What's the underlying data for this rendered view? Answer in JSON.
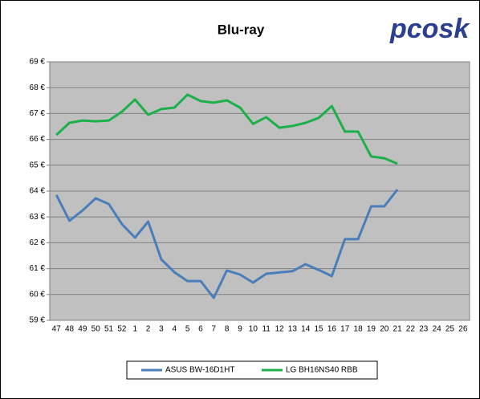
{
  "logo": "pcosk",
  "chart_data": {
    "type": "line",
    "title": "Blu-ray",
    "categories": [
      "47",
      "48",
      "49",
      "50",
      "51",
      "52",
      "1",
      "2",
      "3",
      "4",
      "5",
      "6",
      "7",
      "8",
      "9",
      "10",
      "11",
      "12",
      "13",
      "14",
      "15",
      "16",
      "17",
      "18",
      "19",
      "20",
      "21",
      "22",
      "23",
      "24",
      "25",
      "26"
    ],
    "series": [
      {
        "name": "ASUS BW-16D1HT",
        "color": "#4a7ebb",
        "values": [
          63.85,
          62.85,
          63.25,
          63.72,
          63.5,
          62.72,
          62.2,
          62.82,
          61.36,
          60.86,
          60.52,
          60.52,
          59.87,
          60.93,
          60.77,
          60.46,
          60.8,
          60.85,
          60.9,
          61.17,
          60.95,
          60.71,
          62.14,
          62.14,
          63.41,
          63.41,
          64.06,
          null,
          null,
          null,
          null,
          null
        ]
      },
      {
        "name": "LG BH16NS40 RBB",
        "color": "#1db04a",
        "values": [
          66.17,
          66.64,
          66.73,
          66.7,
          66.73,
          67.07,
          67.54,
          66.95,
          67.17,
          67.23,
          67.73,
          67.48,
          67.42,
          67.51,
          67.23,
          66.6,
          66.86,
          66.45,
          66.52,
          66.64,
          66.83,
          67.29,
          66.3,
          66.3,
          65.34,
          65.27,
          65.06,
          null,
          null,
          null,
          null,
          null
        ]
      }
    ],
    "ylim": [
      59,
      69
    ],
    "yticks": [
      {
        "value": 59,
        "label": "59 €"
      },
      {
        "value": 60,
        "label": "60 €"
      },
      {
        "value": 61,
        "label": "61 €"
      },
      {
        "value": 62,
        "label": "62 €"
      },
      {
        "value": 63,
        "label": "63 €"
      },
      {
        "value": 64,
        "label": "64 €"
      },
      {
        "value": 65,
        "label": "65 €"
      },
      {
        "value": 66,
        "label": "66 €"
      },
      {
        "value": 67,
        "label": "67 €"
      },
      {
        "value": 68,
        "label": "68 €"
      },
      {
        "value": 69,
        "label": "69 €"
      }
    ],
    "grid": true,
    "legend": "bottom"
  }
}
